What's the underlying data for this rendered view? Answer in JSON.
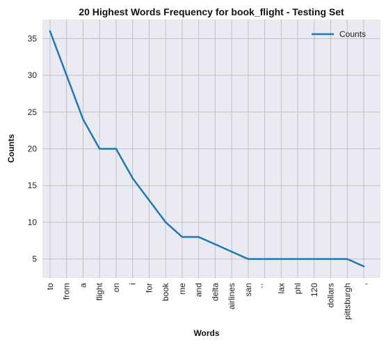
{
  "chart_data": {
    "type": "line",
    "title": "20 Highest Words Frequency for book_flight - Testing Set",
    "xlabel": "Words",
    "ylabel": "Counts",
    "categories": [
      "to",
      "from",
      "a",
      "flight",
      "on",
      "i",
      "for",
      "book",
      "me",
      "and",
      "delta",
      "airlines",
      "san",
      "``",
      "lax",
      "phl",
      "120",
      "dollars",
      "pittsburgh",
      ","
    ],
    "series": [
      {
        "name": "Counts",
        "values": [
          36,
          30,
          24,
          20,
          20,
          16,
          13,
          10,
          8,
          8,
          7,
          6,
          5,
          5,
          5,
          5,
          5,
          5,
          5,
          4
        ]
      }
    ],
    "yticks": [
      5,
      10,
      15,
      20,
      25,
      30,
      35
    ],
    "ylim": [
      2.4,
      37.6
    ],
    "grid": true,
    "legend_position": "top-right",
    "colors": {
      "line": "#1f77b4",
      "background": "#eaeaf2",
      "grid": "#bfbfc6"
    }
  }
}
